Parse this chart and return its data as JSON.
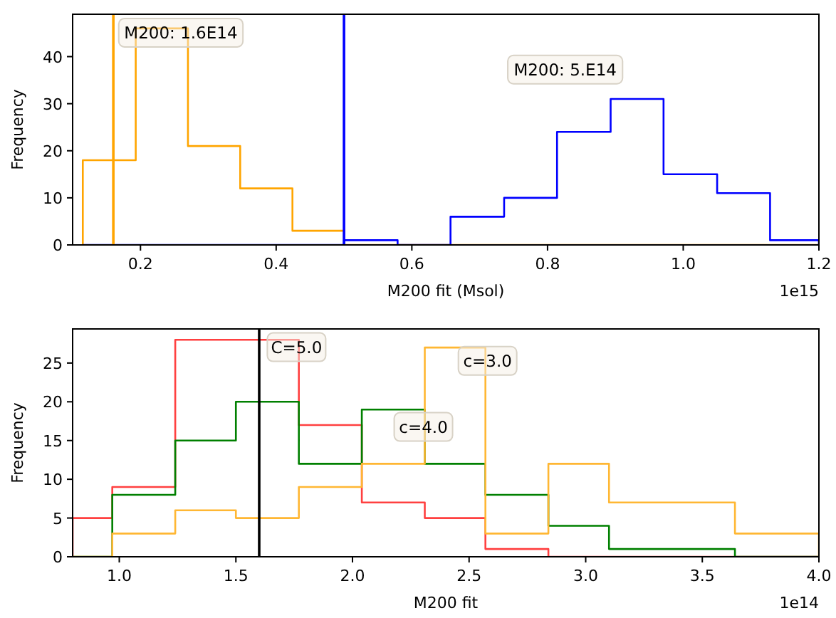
{
  "chart_data": [
    {
      "type": "histogram",
      "xlabel": "M200 fit (Msol)",
      "ylabel": "Frequency",
      "xlim": [
        0.1,
        1.2
      ],
      "xticks": [
        {
          "value": 0.2,
          "label": "0.2"
        },
        {
          "value": 0.4,
          "label": "0.4"
        },
        {
          "value": 0.6,
          "label": "0.6"
        },
        {
          "value": 0.8,
          "label": "0.8"
        },
        {
          "value": 1.0,
          "label": "1.0"
        },
        {
          "value": 1.2,
          "label": "1.2"
        }
      ],
      "ylim": [
        0,
        49
      ],
      "yticks": [
        0,
        10,
        20,
        30,
        40
      ],
      "grid": false,
      "bins": [
        0.115,
        0.193,
        0.27,
        0.347,
        0.424,
        0.5,
        0.579,
        0.657,
        0.736,
        0.814,
        0.893,
        0.971,
        1.05,
        1.128,
        1.2
      ],
      "series": [
        {
          "color": "#ffa500",
          "values": [
            18,
            46,
            21,
            12,
            3,
            0,
            0,
            0,
            0,
            0,
            0,
            0,
            0,
            0
          ]
        },
        {
          "color": "#0000ff",
          "values": [
            0,
            0,
            0,
            0,
            0,
            1,
            0,
            6,
            10,
            24,
            31,
            15,
            11,
            1
          ]
        }
      ],
      "ref_lines": [
        {
          "axis": "x",
          "value": 0.16,
          "color": "#ffa500"
        },
        {
          "axis": "x",
          "value": 0.5,
          "color": "#0000ff"
        }
      ],
      "annotations": [
        "M200: 1.6E14",
        "M200: 5.E14",
        "1e15"
      ]
    },
    {
      "type": "histogram",
      "xlabel": "M200 fit",
      "ylabel": "Frequency",
      "xlim": [
        0.8,
        4.0
      ],
      "xticks": [
        {
          "value": 1.0,
          "label": "1.0"
        },
        1.5,
        {
          "value": 2.0,
          "label": "2.0"
        },
        2.5,
        {
          "value": 3.0,
          "label": "3.0"
        },
        3.5,
        {
          "value": 4.0,
          "label": "4.0"
        }
      ],
      "ylim": [
        0,
        29.4
      ],
      "yticks": [
        0,
        5,
        10,
        15,
        20,
        25
      ],
      "grid": false,
      "bins": [
        0.8,
        0.97,
        1.24,
        1.5,
        1.77,
        2.04,
        2.31,
        2.57,
        2.84,
        3.1,
        3.37,
        3.64,
        3.9,
        4.0
      ],
      "series": [
        {
          "color": "#ff4040",
          "values": [
            5,
            9,
            28,
            28,
            17,
            7,
            5,
            1,
            0,
            0,
            0,
            0,
            0
          ]
        },
        {
          "color": "#008000",
          "values": [
            0,
            8,
            15,
            20,
            12,
            19,
            12,
            8,
            4,
            1,
            1,
            0,
            0
          ]
        },
        {
          "color": "#ffb733",
          "values": [
            0,
            3,
            6,
            5,
            9,
            12,
            27,
            3,
            12,
            7,
            7,
            3,
            3
          ]
        }
      ],
      "ref_lines": [
        {
          "axis": "x",
          "value": 1.6,
          "color": "#000000"
        }
      ],
      "annotations": [
        "C=5.0",
        "c=3.0",
        "c=4.0",
        "1e14"
      ]
    }
  ]
}
